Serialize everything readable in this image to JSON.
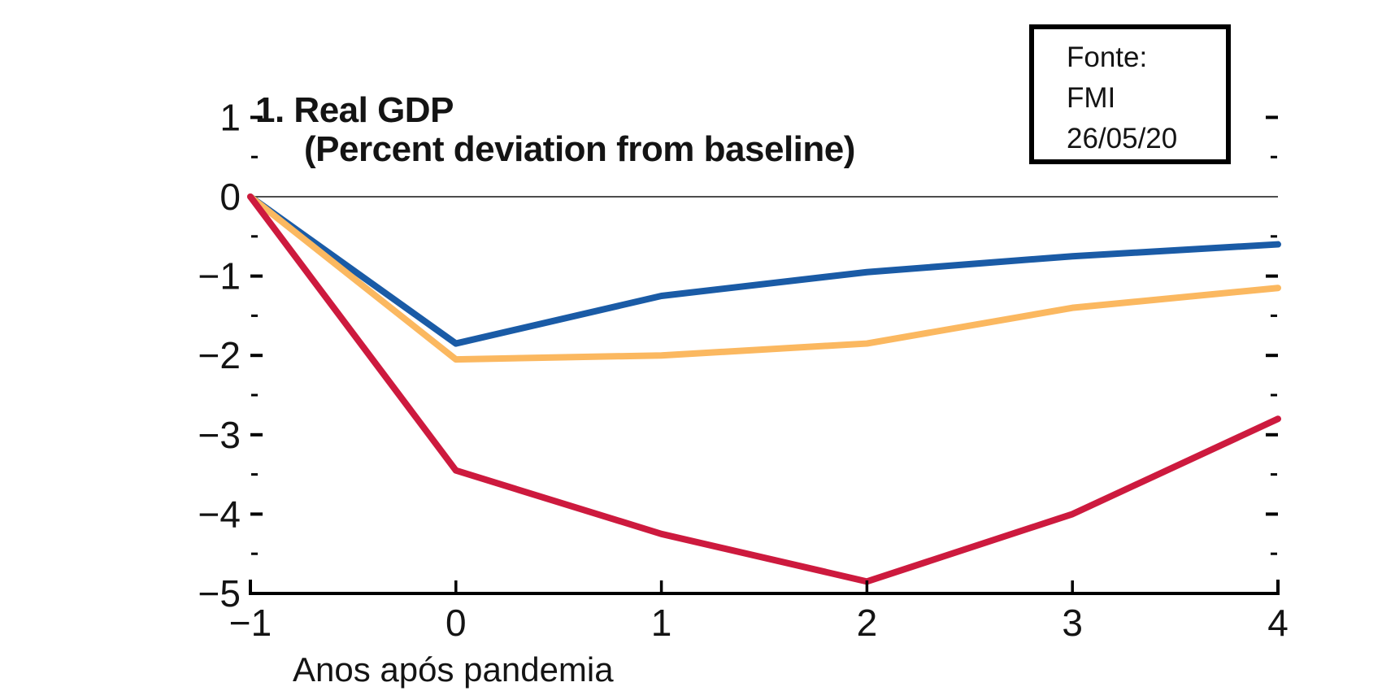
{
  "title": {
    "line1": "1. Real GDP",
    "line2": "(Percent deviation from baseline)"
  },
  "source_box": {
    "lines": [
      "Fonte:",
      "FMI",
      "26/05/20"
    ]
  },
  "x_axis": {
    "label": "Anos após pandemia",
    "ticks": [
      -1,
      0,
      1,
      2,
      3,
      4
    ]
  },
  "y_axis": {
    "ticks": [
      1,
      0,
      -1,
      -2,
      -3,
      -4,
      -5
    ],
    "minor_ticks": [
      0.5,
      -0.5,
      -1.5,
      -2.5,
      -3.5,
      -4.5
    ]
  },
  "chart_data": {
    "type": "line",
    "title": "1. Real GDP",
    "subtitle": "(Percent deviation from baseline)",
    "xlabel": "Anos após pandemia",
    "ylabel": "",
    "x": [
      -1,
      0,
      1,
      2,
      3,
      4
    ],
    "series": [
      {
        "name": "blue-line",
        "color": "#1a5ba6",
        "values": [
          0,
          -1.85,
          -1.25,
          -0.95,
          -0.75,
          -0.6
        ]
      },
      {
        "name": "yellow-line",
        "color": "#fbb860",
        "values": [
          0,
          -2.05,
          -2.0,
          -1.85,
          -1.4,
          -1.15
        ]
      },
      {
        "name": "red-line",
        "color": "#cd1a3e",
        "values": [
          0,
          -3.45,
          -4.25,
          -4.85,
          -4.0,
          -2.8
        ]
      }
    ],
    "xlim": [
      -1,
      4
    ],
    "ylim": [
      -5,
      1
    ],
    "grid": "zero-line-only",
    "legend": "none",
    "annotation": "Fonte: FMI 26/05/20"
  },
  "colors": {
    "axis": "#000000",
    "zero_line": "#4d4d4d",
    "background": "#ffffff",
    "text": "#141414"
  }
}
